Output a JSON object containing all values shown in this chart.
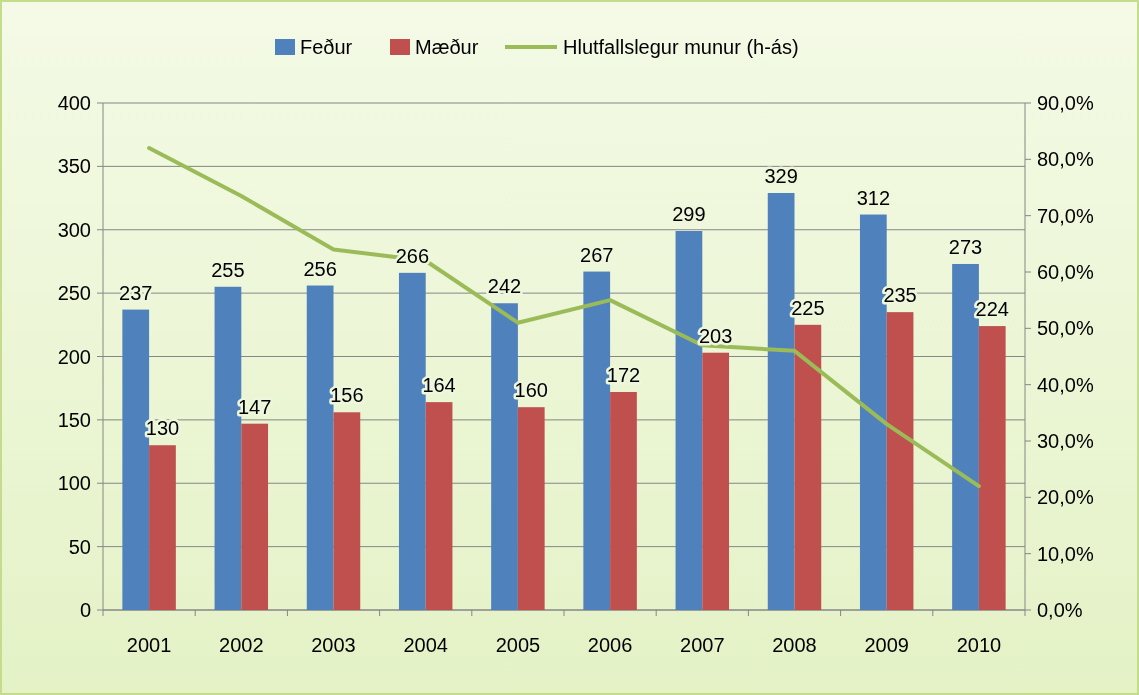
{
  "chart_data": {
    "type": "bar",
    "categories": [
      "2001",
      "2002",
      "2003",
      "2004",
      "2005",
      "2006",
      "2007",
      "2008",
      "2009",
      "2010"
    ],
    "series": [
      {
        "name": "Feður",
        "color": "#4f81bd",
        "values": [
          237,
          255,
          256,
          266,
          242,
          267,
          299,
          329,
          312,
          273
        ],
        "value_labels": [
          "237",
          "255",
          "256",
          "266",
          "242",
          "267",
          "299",
          "329",
          "312",
          "273"
        ]
      },
      {
        "name": "Mæður",
        "color": "#c0504d",
        "values": [
          130,
          147,
          156,
          164,
          160,
          172,
          203,
          225,
          235,
          224
        ],
        "value_labels": [
          "130",
          "147",
          "156",
          "164",
          "160",
          "172",
          "203",
          "225",
          "235",
          "224"
        ]
      },
      {
        "name": "Hlutfallslegur munur (h-ás)",
        "type": "line",
        "axis": "y2",
        "color": "#9bbb59",
        "values": [
          82,
          73.5,
          64,
          62,
          51,
          55,
          47,
          46,
          33,
          22
        ]
      }
    ],
    "ylim": [
      0,
      400
    ],
    "yticks": [
      0,
      50,
      100,
      150,
      200,
      250,
      300,
      350,
      400
    ],
    "y2lim": [
      0,
      90
    ],
    "y2ticks": [
      {
        "value": 0,
        "label": "0,0%"
      },
      {
        "value": 10,
        "label": "10,0%"
      },
      {
        "value": 20,
        "label": "20,0%"
      },
      {
        "value": 30,
        "label": "30,0%"
      },
      {
        "value": 40,
        "label": "40,0%"
      },
      {
        "value": 50,
        "label": "50,0%"
      },
      {
        "value": 60,
        "label": "60,0%"
      },
      {
        "value": 70,
        "label": "70,0%"
      },
      {
        "value": 80,
        "label": "80,0%"
      },
      {
        "value": 90,
        "label": "90,0%"
      }
    ],
    "grid": "y",
    "legend": "top",
    "marker": "none",
    "line_style": "solid"
  }
}
